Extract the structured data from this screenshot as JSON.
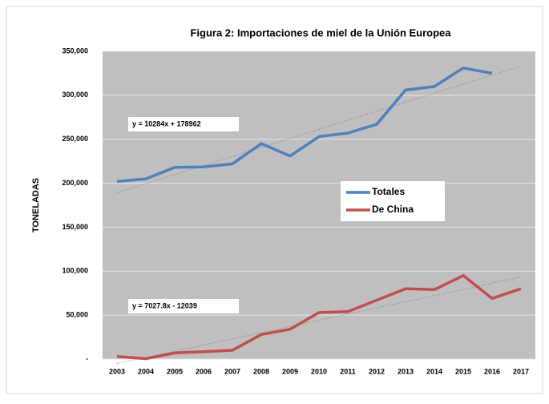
{
  "chart_data": {
    "type": "line",
    "title": "Figura 2: Importaciones de miel de la Unión Europea",
    "y_axis_label": "TONELADAS",
    "categories": [
      "2003",
      "2004",
      "2005",
      "2006",
      "2007",
      "2008",
      "2009",
      "2010",
      "2011",
      "2012",
      "2013",
      "2014",
      "2015",
      "2016",
      "2017"
    ],
    "series": [
      {
        "name": "Totales",
        "color": "#4f81bd",
        "values": [
          202000,
          205000,
          218000,
          218500,
          222000,
          245000,
          231000,
          253000,
          257000,
          267000,
          306000,
          310000,
          331000,
          325000,
          null
        ]
      },
      {
        "name": "De China",
        "color": "#c0504d",
        "values": [
          3000,
          500,
          7000,
          8500,
          10000,
          28000,
          34000,
          53000,
          54000,
          67000,
          80000,
          79000,
          95000,
          69000,
          80000
        ]
      }
    ],
    "trendlines": [
      {
        "equation": "y = 10284x + 178962",
        "slope": 10284,
        "intercept": 178962
      },
      {
        "equation": "y = 7027.8x - 12039",
        "slope": 7027.8,
        "intercept": -12039
      }
    ],
    "ylim": [
      0,
      350000
    ],
    "yticks": [
      {
        "value": 0,
        "label": "-"
      },
      {
        "value": 50000,
        "label": "50,000"
      },
      {
        "value": 100000,
        "label": "100,000"
      },
      {
        "value": 150000,
        "label": "150,000"
      },
      {
        "value": 200000,
        "label": "200,000"
      },
      {
        "value": 250000,
        "label": "250,000"
      },
      {
        "value": 300000,
        "label": "300,000"
      },
      {
        "value": 350000,
        "label": "350,000"
      }
    ],
    "grid": true
  }
}
